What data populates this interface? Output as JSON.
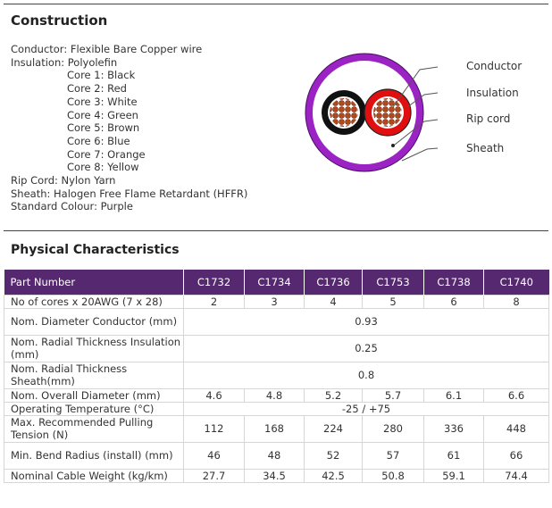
{
  "construction": {
    "title": "Construction",
    "lines": [
      "Conductor: Flexible Bare Copper wire",
      "Insulation: Polyolefin"
    ],
    "cores": [
      "Core 1: Black",
      "Core 2: Red",
      "Core 3: White",
      "Core 4: Green",
      "Core 5: Brown",
      "Core 6: Blue",
      "Core 7: Orange",
      "Core 8: Yellow"
    ],
    "after": [
      "Rip Cord: Nylon Yarn",
      "Sheath: Halogen Free Flame Retardant (HFFR)",
      "Standard Colour: Purple"
    ]
  },
  "diagram": {
    "labels": [
      "Conductor",
      "Insulation",
      "Rip cord",
      "Sheath"
    ],
    "colors": {
      "sheath": "#9b22c3",
      "core_black": "#111111",
      "core_red": "#e01010",
      "copper": "#b04a1e"
    }
  },
  "physical": {
    "title": "Physical Characteristics",
    "header": [
      "Part Number",
      "C1732",
      "C1734",
      "C1736",
      "C1753",
      "C1738",
      "C1740"
    ],
    "rows": {
      "cores": {
        "label": "No of cores x 20AWG (7 x 28)",
        "values": [
          "2",
          "3",
          "4",
          "5",
          "6",
          "8"
        ]
      },
      "diam_conductor": {
        "label": "Nom. Diameter Conductor (mm)",
        "value": "0.93"
      },
      "thick_insulation": {
        "label": "Nom. Radial Thickness Insulation (mm)",
        "value": "0.25"
      },
      "thick_sheath": {
        "label": "Nom. Radial Thickness Sheath(mm)",
        "value": "0.8"
      },
      "overall_diam": {
        "label": "Nom. Overall Diameter (mm)",
        "values": [
          "4.6",
          "4.8",
          "5.2",
          "5.7",
          "6.1",
          "6.6"
        ]
      },
      "temp": {
        "label": "Operating Temperature (°C)",
        "value": "-25 / +75"
      },
      "pulling": {
        "label": "Max. Recommended Pulling Tension (N)",
        "values": [
          "112",
          "168",
          "224",
          "280",
          "336",
          "448"
        ]
      },
      "bend": {
        "label": "Min. Bend Radius (install) (mm)",
        "values": [
          "46",
          "48",
          "52",
          "57",
          "61",
          "66"
        ]
      },
      "weight": {
        "label": "Nominal Cable Weight (kg/km)",
        "values": [
          "27.7",
          "34.5",
          "42.5",
          "50.8",
          "59.1",
          "74.4"
        ]
      }
    },
    "colors": {
      "header_bg": "#55286f",
      "header_text": "#ffffff"
    }
  }
}
